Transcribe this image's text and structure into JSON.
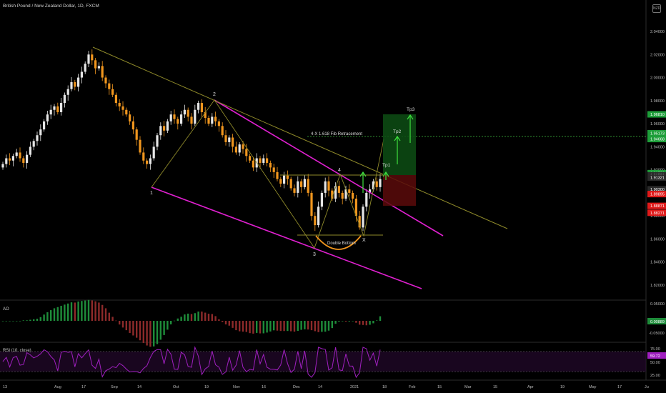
{
  "header": {
    "symbol": "British Pound / New Zealand Dollar, 1D, FXCM",
    "scale_badge": "NZD"
  },
  "chart_data": [
    {
      "type": "candlestick",
      "title": "British Pound / New Zealand Dollar, 1D, FXCM",
      "y_ticks": [
        "2.04000",
        "2.02000",
        "2.00000",
        "1.98000",
        "1.96000",
        "1.94000",
        "1.92000",
        "1.90000",
        "1.88000",
        "1.86000",
        "1.84000",
        "1.82000"
      ],
      "ylim": [
        1.8,
        2.06
      ],
      "x_ticks": [
        "13",
        "Aug",
        "17",
        "Sep",
        "14",
        "Oct",
        "19",
        "Nov",
        "16",
        "Dec",
        "14",
        "2021",
        "18",
        "Feb",
        "15",
        "Mar",
        "15",
        "Apr",
        "19",
        "May",
        "17",
        "Ju"
      ],
      "price_tags": [
        {
          "text": "1.96810",
          "color": "#1e9e3a"
        },
        {
          "text": "1.95173",
          "color": "#1e9e3a"
        },
        {
          "text": "1.94668",
          "color": "#1e9e3a"
        },
        {
          "text": "1.91709",
          "color": "#1e9e3a"
        },
        {
          "text": "1.91521",
          "color": "#2a2a2a"
        },
        {
          "text": "1.91321",
          "color": "#2a2a2a"
        },
        {
          "text": "1.90290",
          "color": "#cfcfcf"
        },
        {
          "text": "1.90300",
          "color": "#2a2a2a"
        },
        {
          "text": "1.89895",
          "color": "#e01a1a"
        },
        {
          "text": "1.88871",
          "color": "#e01a1a"
        },
        {
          "text": "1.88271",
          "color": "#e01a1a"
        }
      ],
      "annotations": [
        {
          "text": "1"
        },
        {
          "text": "2"
        },
        {
          "text": "3"
        },
        {
          "text": "4"
        },
        {
          "text": "X"
        },
        {
          "text": "Double Bottom"
        },
        {
          "text": "4-X  1.618 Fib Retracement"
        },
        {
          "text": "Tp1"
        },
        {
          "text": "Tp2"
        },
        {
          "text": "Tp3"
        }
      ],
      "candles_note": "approximate daily closes, Jul 2020 - Jan 2021",
      "closes": [
        1.925,
        1.93,
        1.928,
        1.932,
        1.935,
        1.93,
        1.926,
        1.933,
        1.94,
        1.945,
        1.95,
        1.955,
        1.962,
        1.968,
        1.972,
        1.975,
        1.97,
        1.978,
        1.985,
        1.99,
        1.996,
        1.992,
        2.0,
        2.005,
        2.012,
        2.02,
        2.015,
        2.008,
        2.01,
        2.0,
        1.995,
        1.99,
        1.985,
        1.978,
        1.975,
        1.972,
        1.968,
        1.962,
        1.955,
        1.946,
        1.935,
        1.928,
        1.925,
        1.93,
        1.94,
        1.95,
        1.958,
        1.954,
        1.962,
        1.968,
        1.964,
        1.96,
        1.968,
        1.972,
        1.966,
        1.96,
        1.972,
        1.978,
        1.97,
        1.965,
        1.96,
        1.966,
        1.962,
        1.958,
        1.95,
        1.944,
        1.948,
        1.94,
        1.935,
        1.942,
        1.938,
        1.932,
        1.928,
        1.922,
        1.93,
        1.926,
        1.93,
        1.926,
        1.922,
        1.918,
        1.912,
        1.908,
        1.915,
        1.912,
        1.904,
        1.9,
        1.91,
        1.905,
        1.912,
        1.9,
        1.88,
        1.872,
        1.888,
        1.9,
        1.91,
        1.902,
        1.895,
        1.906,
        1.9,
        1.895,
        1.903,
        1.9,
        1.895,
        1.88,
        1.87,
        1.888,
        1.9,
        1.903,
        1.91,
        1.905,
        1.912
      ]
    },
    {
      "type": "bar",
      "title": "AO",
      "value_tag": "0.00889",
      "y_ticks": [
        "0.05000",
        "-0.05000"
      ],
      "values_note": "Awesome Oscillator histogram"
    },
    {
      "type": "line",
      "title": "RSI (10, close)",
      "value_tag": "59.72",
      "y_ticks": [
        "75.00",
        "50.00",
        "25.00"
      ],
      "levels": [
        70,
        30
      ]
    }
  ],
  "colors": {
    "background": "#000000",
    "bull": "#e6e6e6",
    "bear": "#f0961e",
    "channel": "#e020d0",
    "trend": "#8f8a2a",
    "fib": "#3fbf3f",
    "ao_up": "#1e8c3a",
    "ao_down": "#8c2a2a",
    "rsi": "#a020c0"
  }
}
